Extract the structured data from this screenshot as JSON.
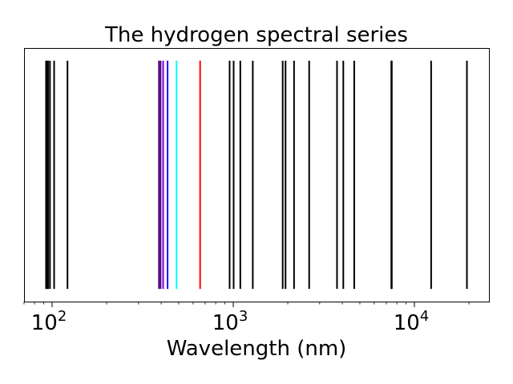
{
  "chart_data": {
    "type": "vlines",
    "title": "The hydrogen spectral series",
    "xlabel": "Wavelength (nm)",
    "ylabel": "",
    "xscale": "log",
    "xlim": [
      70,
      25800
    ],
    "ylim": [
      0,
      1
    ],
    "line_span": [
      0.05,
      0.95
    ],
    "grid": false,
    "yticks": [],
    "xticks": [
      {
        "value": 100,
        "base": "10",
        "exp": "2"
      },
      {
        "value": 1000,
        "base": "10",
        "exp": "3"
      },
      {
        "value": 10000,
        "base": "10",
        "exp": "4"
      }
    ],
    "lines": [
      {
        "wavelength": 121.6,
        "color": "#000000"
      },
      {
        "wavelength": 102.6,
        "color": "#000000"
      },
      {
        "wavelength": 97.3,
        "color": "#000000"
      },
      {
        "wavelength": 95.0,
        "color": "#000000"
      },
      {
        "wavelength": 93.8,
        "color": "#000000"
      },
      {
        "wavelength": 93.1,
        "color": "#000000"
      },
      {
        "wavelength": 92.6,
        "color": "#000000"
      },
      {
        "wavelength": 656.3,
        "color": "#ff0000"
      },
      {
        "wavelength": 486.1,
        "color": "#00ffff"
      },
      {
        "wavelength": 434.0,
        "color": "#2400ff"
      },
      {
        "wavelength": 410.2,
        "color": "#7a00d6"
      },
      {
        "wavelength": 397.0,
        "color": "#4b0080"
      },
      {
        "wavelength": 388.9,
        "color": "#4b0080"
      },
      {
        "wavelength": 1875,
        "color": "#000000"
      },
      {
        "wavelength": 1282,
        "color": "#000000"
      },
      {
        "wavelength": 1094,
        "color": "#000000"
      },
      {
        "wavelength": 1005,
        "color": "#000000"
      },
      {
        "wavelength": 955,
        "color": "#000000"
      },
      {
        "wavelength": 4051,
        "color": "#000000"
      },
      {
        "wavelength": 2625,
        "color": "#000000"
      },
      {
        "wavelength": 2166,
        "color": "#000000"
      },
      {
        "wavelength": 1944,
        "color": "#000000"
      },
      {
        "wavelength": 7460,
        "color": "#000000"
      },
      {
        "wavelength": 4654,
        "color": "#000000"
      },
      {
        "wavelength": 3740,
        "color": "#000000"
      },
      {
        "wavelength": 12370,
        "color": "#000000"
      },
      {
        "wavelength": 7502,
        "color": "#000000"
      },
      {
        "wavelength": 19500,
        "color": "#000000"
      }
    ]
  }
}
